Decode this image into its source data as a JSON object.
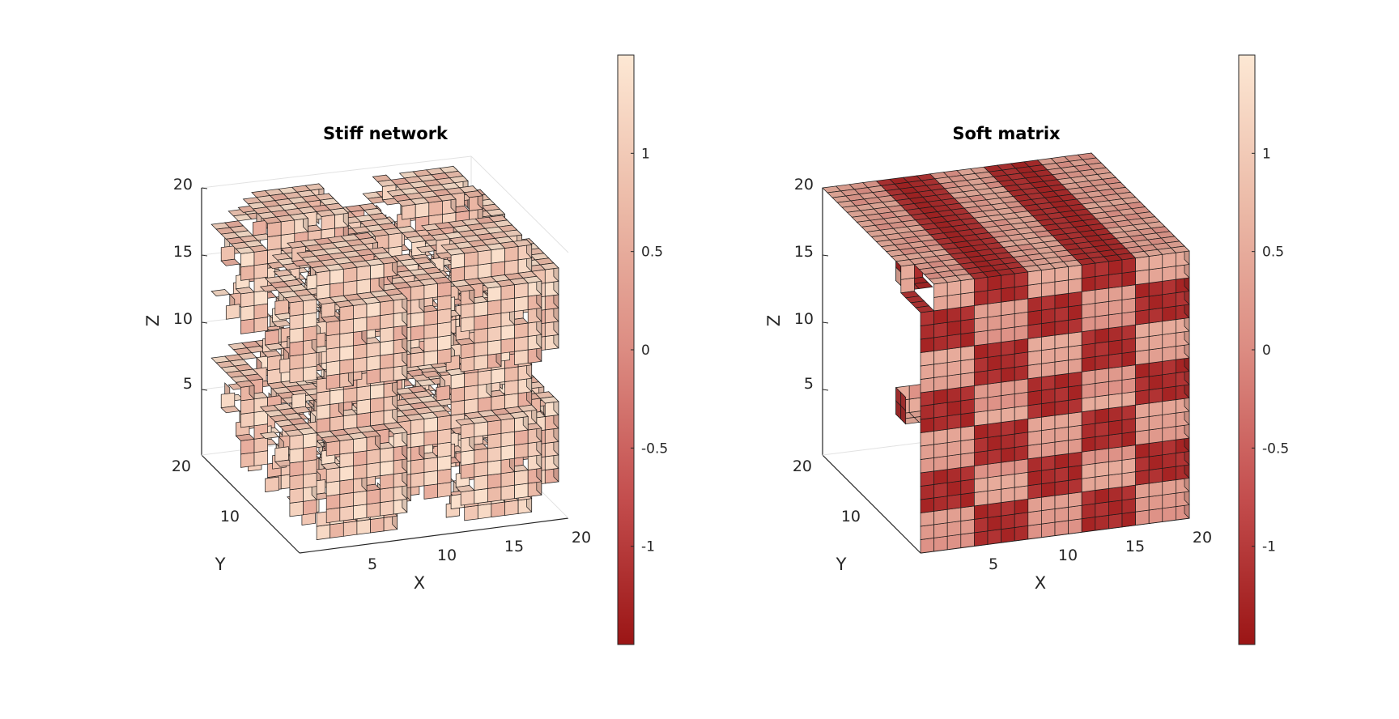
{
  "chart_data": [
    {
      "type": "voxel-3d",
      "title": "Stiff network",
      "xlabel": "X",
      "ylabel": "Y",
      "zlabel": "Z",
      "xlim": [
        0,
        20
      ],
      "ylim": [
        0,
        20
      ],
      "zlim": [
        0,
        20
      ],
      "xticks": [
        "5",
        "10",
        "15",
        "20"
      ],
      "yticks": [
        "10",
        "20"
      ],
      "zticks": [
        "5",
        "10",
        "15",
        "20"
      ],
      "structure": "open lattice of connected struts with large through-holes",
      "value_range": [
        0.5,
        1.4
      ],
      "colorbar": {
        "ticks": [
          "1",
          "0.5",
          "0",
          "-0.5",
          "-1"
        ],
        "tick_values": [
          1,
          0.5,
          0,
          -0.5,
          -1
        ],
        "limits": [
          -1.5,
          1.5
        ],
        "colors": [
          "#9b1515",
          "#c44e4e",
          "#dc8c82",
          "#ecbba8",
          "#fde8d4"
        ]
      },
      "grid": true
    },
    {
      "type": "voxel-3d",
      "title": "Soft matrix",
      "xlabel": "X",
      "ylabel": "Y",
      "zlabel": "Z",
      "xlim": [
        0,
        20
      ],
      "ylim": [
        0,
        20
      ],
      "zlim": [
        0,
        20
      ],
      "xticks": [
        "5",
        "10",
        "15",
        "20"
      ],
      "yticks": [
        "10",
        "20"
      ],
      "zticks": [
        "5",
        "10",
        "15",
        "20"
      ],
      "structure": "nearly solid cube with small cavities, surface bands of darker red",
      "value_range": [
        -1.4,
        0.6
      ],
      "colorbar": {
        "ticks": [
          "1",
          "0.5",
          "0",
          "-0.5",
          "-1"
        ],
        "tick_values": [
          1,
          0.5,
          0,
          -0.5,
          -1
        ],
        "limits": [
          -1.5,
          1.5
        ],
        "colors": [
          "#9b1515",
          "#c44e4e",
          "#dc8c82",
          "#ecbba8",
          "#fde8d4"
        ]
      },
      "grid": true
    }
  ]
}
